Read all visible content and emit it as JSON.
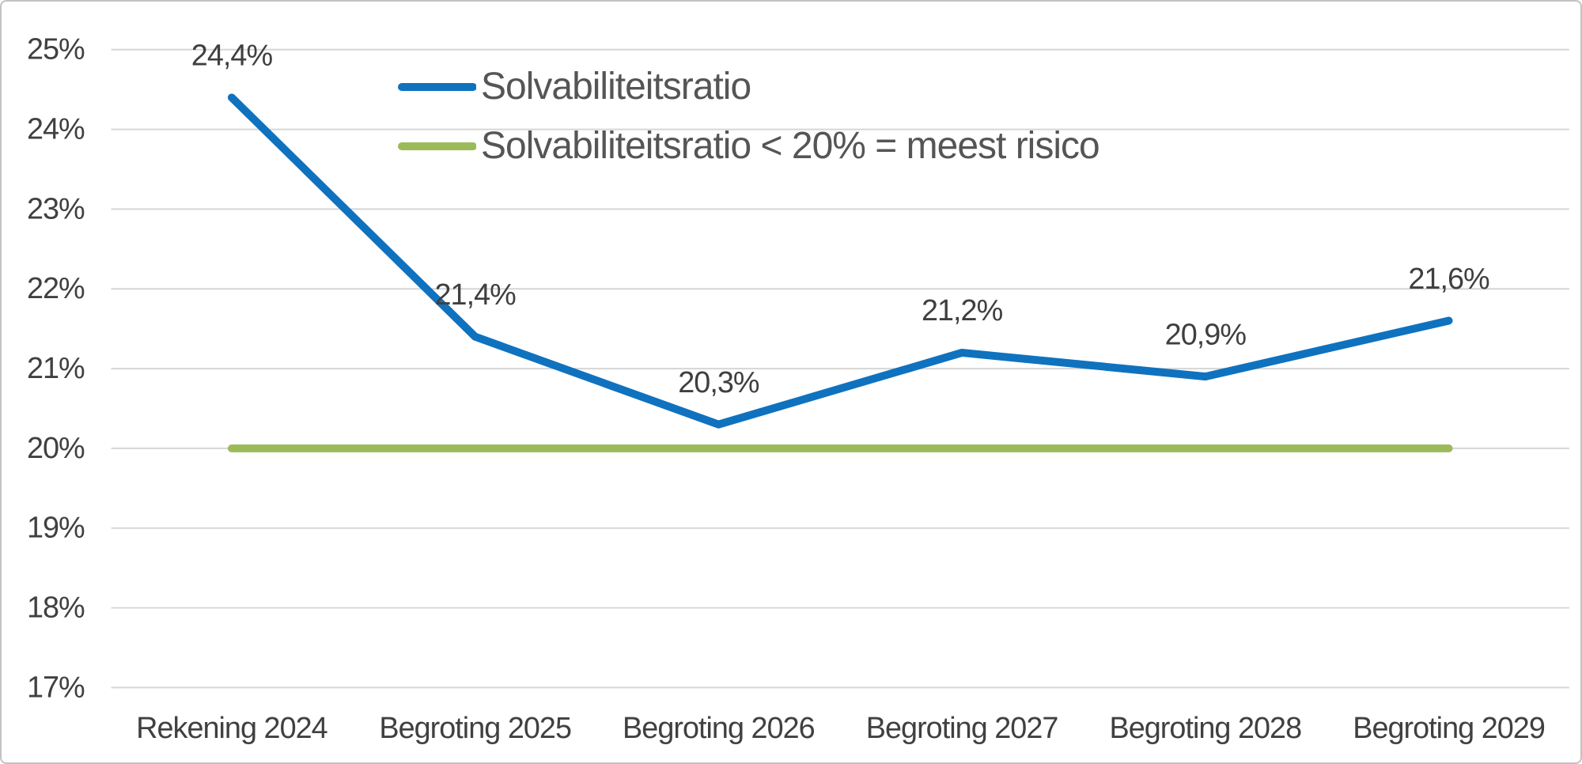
{
  "chart_data": {
    "type": "line",
    "title": "",
    "categories": [
      "Rekening 2024",
      "Begroting 2025",
      "Begroting 2026",
      "Begroting 2027",
      "Begroting 2028",
      "Begroting 2029"
    ],
    "series": [
      {
        "name": "Solvabiliteitsratio",
        "color": "#0F72BE",
        "values": [
          24.4,
          21.4,
          20.3,
          21.2,
          20.9,
          21.6
        ],
        "point_labels": [
          "24,4%",
          "21,4%",
          "20,3%",
          "21,2%",
          "20,9%",
          "21,6%"
        ]
      },
      {
        "name": "Solvabiliteitsratio < 20% = meest risico",
        "color": "#9BBB59",
        "values": [
          20,
          20,
          20,
          20,
          20,
          20
        ],
        "point_labels": []
      }
    ],
    "ylim": [
      17,
      25
    ],
    "ytick_step": 1,
    "ytick_labels": [
      "25%",
      "24%",
      "23%",
      "22%",
      "21%",
      "20%",
      "19%",
      "18%",
      "17%"
    ],
    "grid": true,
    "legend_position": "top-center",
    "colors": {
      "axis_text": "#404040",
      "legend_text": "#555555",
      "gridline": "#D6D6D6",
      "frame_border": "#C2C2C2"
    }
  }
}
